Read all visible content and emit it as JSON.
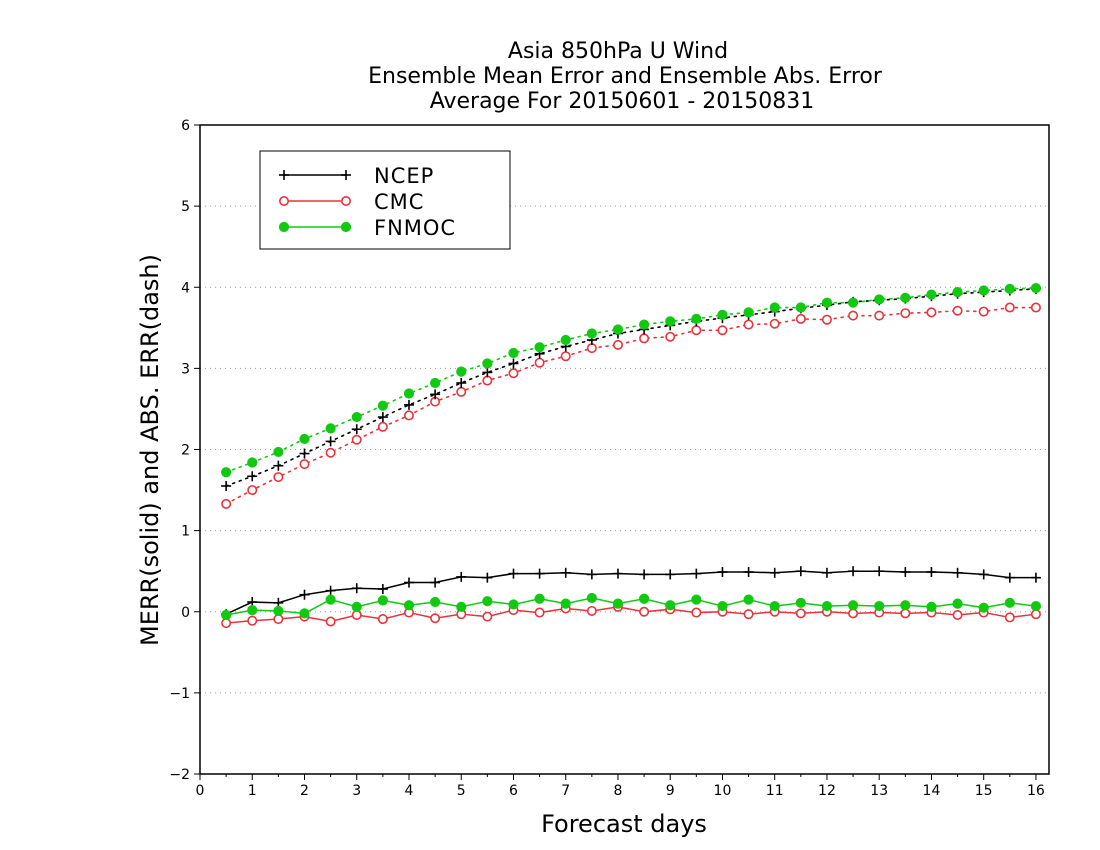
{
  "chart_data": {
    "type": "line",
    "title": [
      "Asia 850hPa U Wind",
      "Ensemble Mean Error and Ensemble Abs. Error",
      "Average For 20150601 - 20150831"
    ],
    "xlabel": "Forecast days",
    "ylabel": "MERR(solid) and ABS. ERR(dash)",
    "xlim": [
      0,
      16.25
    ],
    "ylim": [
      -2,
      6
    ],
    "xticks": [
      0,
      1,
      2,
      3,
      4,
      5,
      6,
      7,
      8,
      9,
      10,
      11,
      12,
      13,
      14,
      15,
      16
    ],
    "yticks": [
      -2,
      -1,
      0,
      1,
      2,
      3,
      4,
      5,
      6
    ],
    "ytick_labels": [
      "−2",
      "−1",
      "0",
      "1",
      "2",
      "3",
      "4",
      "5",
      "6"
    ],
    "grid": "horizontal dotted",
    "legend_position": "top-left",
    "x": [
      0.5,
      1,
      1.5,
      2,
      2.5,
      3,
      3.5,
      4,
      4.5,
      5,
      5.5,
      6,
      6.5,
      7,
      7.5,
      8,
      8.5,
      9,
      9.5,
      10,
      10.5,
      11,
      11.5,
      12,
      12.5,
      13,
      13.5,
      14,
      14.5,
      15,
      15.5,
      16
    ],
    "series": [
      {
        "name": "NCEP",
        "color": "#000000",
        "marker": "plus",
        "merr": [
          -0.03,
          0.12,
          0.11,
          0.21,
          0.26,
          0.29,
          0.28,
          0.36,
          0.36,
          0.43,
          0.42,
          0.47,
          0.47,
          0.48,
          0.46,
          0.47,
          0.46,
          0.46,
          0.47,
          0.49,
          0.49,
          0.48,
          0.5,
          0.48,
          0.5,
          0.5,
          0.49,
          0.49,
          0.48,
          0.46,
          0.42,
          0.42
        ],
        "abserr": [
          1.55,
          1.67,
          1.8,
          1.95,
          2.1,
          2.25,
          2.4,
          2.55,
          2.68,
          2.82,
          2.95,
          3.06,
          3.18,
          3.27,
          3.35,
          3.43,
          3.48,
          3.53,
          3.58,
          3.62,
          3.66,
          3.7,
          3.74,
          3.78,
          3.82,
          3.84,
          3.86,
          3.89,
          3.92,
          3.94,
          3.96,
          3.98
        ]
      },
      {
        "name": "CMC",
        "color": "#e8333a",
        "marker": "open-circle",
        "merr": [
          -0.14,
          -0.11,
          -0.09,
          -0.06,
          -0.12,
          -0.04,
          -0.09,
          -0.01,
          -0.08,
          -0.03,
          -0.06,
          0.02,
          -0.01,
          0.04,
          0.01,
          0.06,
          0.0,
          0.03,
          -0.01,
          0.0,
          -0.03,
          0.0,
          -0.02,
          0.0,
          -0.02,
          -0.01,
          -0.02,
          -0.01,
          -0.04,
          -0.01,
          -0.07,
          -0.03
        ],
        "abserr": [
          1.33,
          1.5,
          1.66,
          1.82,
          1.96,
          2.12,
          2.28,
          2.42,
          2.59,
          2.71,
          2.85,
          2.94,
          3.07,
          3.15,
          3.25,
          3.29,
          3.37,
          3.39,
          3.47,
          3.47,
          3.54,
          3.55,
          3.61,
          3.6,
          3.65,
          3.65,
          3.68,
          3.69,
          3.71,
          3.7,
          3.75,
          3.75
        ]
      },
      {
        "name": "FNMOC",
        "color": "#12c912",
        "marker": "filled-circle",
        "merr": [
          -0.04,
          0.02,
          0.01,
          -0.02,
          0.15,
          0.06,
          0.14,
          0.08,
          0.12,
          0.06,
          0.13,
          0.09,
          0.16,
          0.1,
          0.17,
          0.1,
          0.16,
          0.08,
          0.15,
          0.07,
          0.15,
          0.07,
          0.11,
          0.07,
          0.08,
          0.07,
          0.08,
          0.06,
          0.1,
          0.05,
          0.11,
          0.07
        ],
        "abserr": [
          1.72,
          1.84,
          1.97,
          2.13,
          2.26,
          2.4,
          2.54,
          2.69,
          2.82,
          2.96,
          3.06,
          3.19,
          3.26,
          3.35,
          3.43,
          3.48,
          3.54,
          3.58,
          3.61,
          3.66,
          3.69,
          3.75,
          3.75,
          3.81,
          3.81,
          3.85,
          3.87,
          3.91,
          3.94,
          3.96,
          3.98,
          3.99
        ]
      }
    ]
  }
}
